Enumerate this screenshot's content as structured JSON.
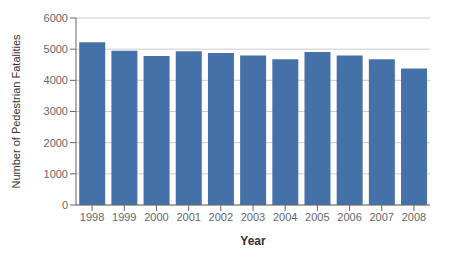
{
  "chart_data": {
    "type": "bar",
    "xlabel": "Year",
    "ylabel": "Number of Pedestrian Fatalities",
    "categories": [
      "1998",
      "1999",
      "2000",
      "2001",
      "2002",
      "2003",
      "2004",
      "2005",
      "2006",
      "2007",
      "2008"
    ],
    "values": [
      5220,
      4950,
      4780,
      4930,
      4880,
      4800,
      4675,
      4910,
      4795,
      4680,
      4378
    ],
    "color": "#4472a8",
    "ylim": [
      0,
      6000
    ],
    "yticks": [
      0,
      1000,
      2000,
      3000,
      4000,
      5000,
      6000
    ],
    "grid": true
  }
}
